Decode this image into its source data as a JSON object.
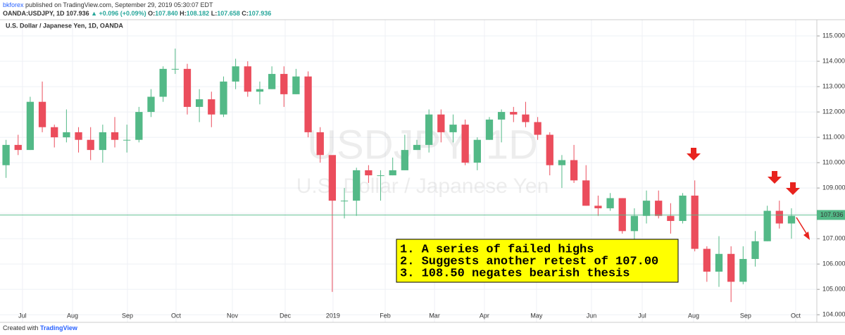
{
  "header": {
    "author": "bkforex",
    "published": "published on TradingView.com, September 29, 2019 05:30:07 EDT",
    "symbol": "OANDA:USDJPY, 1D",
    "last": "107.936",
    "change": "▲ +0.096 (+0.09%)",
    "o_label": "O:",
    "o": "107.840",
    "h_label": "H:",
    "h": "108.182",
    "l_label": "L:",
    "l": "107.658",
    "c_label": "C:",
    "c": "107.936"
  },
  "chart_data": {
    "type": "candlestick",
    "title": "U.S. Dollar / Japanese Yen, 1D, OANDA",
    "watermark": "USDJPY, 1D",
    "watermark_subtitle": "U.S. Dollar / Japanese Yen",
    "up_color": "#53b987",
    "down_color": "#eb4d5c",
    "grid": true,
    "open": [
      109.9,
      110.7,
      110.5,
      112.4,
      111.4,
      111.0,
      111.2,
      110.9,
      110.5,
      111.2,
      110.9,
      110.9,
      112.0,
      112.6,
      113.7,
      113.7,
      112.2,
      112.5,
      111.9,
      113.2,
      113.8,
      112.8,
      112.9,
      113.5,
      112.7,
      113.4,
      111.2,
      110.3,
      108.5,
      108.5,
      109.7,
      109.5,
      109.5,
      109.7,
      110.5,
      110.7,
      111.9,
      111.2,
      111.5,
      110.0,
      110.9,
      111.7,
      112.0,
      111.9,
      111.6,
      111.1,
      109.9,
      110.1,
      109.3,
      108.3,
      108.2,
      108.6,
      107.3,
      107.9,
      108.5,
      107.9,
      107.7,
      108.7,
      106.6,
      105.7,
      106.4,
      105.3,
      106.2,
      106.9,
      108.1,
      107.6
    ],
    "high": [
      110.9,
      111.1,
      112.6,
      113.2,
      111.5,
      112.1,
      111.4,
      111.4,
      111.5,
      111.8,
      111.5,
      112.2,
      112.9,
      113.8,
      114.5,
      113.9,
      112.9,
      112.8,
      113.4,
      114.1,
      114.0,
      113.2,
      113.8,
      113.8,
      113.7,
      113.6,
      111.4,
      110.2,
      109.0,
      109.8,
      109.9,
      109.7,
      110.2,
      111.1,
      110.9,
      112.1,
      112.1,
      111.9,
      111.7,
      111.0,
      111.8,
      112.1,
      112.2,
      112.4,
      111.8,
      111.2,
      110.3,
      110.7,
      109.9,
      108.7,
      108.8,
      108.6,
      108.2,
      108.9,
      108.9,
      108.4,
      108.8,
      109.3,
      106.7,
      107.1,
      106.7,
      106.7,
      107.3,
      108.3,
      108.5,
      108.2
    ],
    "low": [
      109.4,
      110.3,
      110.5,
      111.2,
      110.6,
      110.8,
      110.4,
      110.1,
      110.0,
      110.6,
      110.4,
      110.8,
      111.8,
      112.4,
      113.5,
      111.9,
      111.6,
      111.4,
      111.8,
      112.9,
      112.6,
      112.3,
      112.9,
      112.2,
      112.7,
      111.0,
      110.0,
      104.9,
      107.8,
      107.9,
      109.2,
      108.5,
      109.5,
      109.7,
      110.5,
      110.4,
      110.8,
      110.8,
      109.9,
      109.7,
      110.9,
      110.8,
      111.6,
      111.4,
      110.9,
      109.5,
      109.0,
      109.2,
      108.3,
      107.9,
      108.1,
      107.2,
      106.8,
      107.6,
      107.8,
      107.2,
      107.6,
      106.5,
      105.3,
      105.1,
      104.5,
      105.2,
      105.9,
      106.9,
      107.4,
      107.0
    ],
    "close": [
      110.7,
      110.5,
      112.4,
      111.4,
      111.0,
      111.2,
      110.9,
      110.5,
      111.2,
      110.9,
      110.9,
      112.0,
      112.6,
      113.7,
      113.7,
      112.2,
      112.5,
      111.9,
      113.2,
      113.8,
      112.8,
      112.9,
      113.5,
      112.7,
      113.4,
      111.2,
      110.3,
      108.5,
      108.5,
      109.7,
      109.5,
      109.5,
      109.7,
      110.5,
      110.7,
      111.9,
      111.2,
      111.5,
      110.0,
      110.9,
      111.7,
      112.0,
      111.9,
      111.6,
      111.1,
      109.9,
      110.1,
      109.3,
      108.3,
      108.2,
      108.6,
      107.3,
      107.9,
      108.5,
      107.9,
      107.7,
      108.7,
      106.6,
      105.7,
      106.4,
      105.3,
      106.2,
      106.9,
      108.1,
      107.6,
      107.9
    ],
    "xlim": [
      -0.5,
      67.1
    ],
    "xticks": [
      {
        "value": 1.36,
        "label": "Jul"
      },
      {
        "value": 5.5,
        "label": "Aug"
      },
      {
        "value": 10.05,
        "label": "Sep"
      },
      {
        "value": 14.07,
        "label": "Oct"
      },
      {
        "value": 18.73,
        "label": "Nov"
      },
      {
        "value": 23.1,
        "label": "Dec"
      },
      {
        "value": 27.06,
        "label": "2019"
      },
      {
        "value": 31.38,
        "label": "Feb"
      },
      {
        "value": 35.46,
        "label": "Mar"
      },
      {
        "value": 39.59,
        "label": "Apr"
      },
      {
        "value": 43.9,
        "label": "May"
      },
      {
        "value": 48.45,
        "label": "Jun"
      },
      {
        "value": 52.65,
        "label": "Jul"
      },
      {
        "value": 56.9,
        "label": "Aug"
      },
      {
        "value": 61.21,
        "label": "Sep"
      },
      {
        "value": 65.35,
        "label": "Oct"
      }
    ],
    "ylim": [
      103.7,
      115.64
    ],
    "yticks": [
      {
        "value": 104,
        "label": "104.000"
      },
      {
        "value": 105,
        "label": "105.000"
      },
      {
        "value": 106,
        "label": "106.000"
      },
      {
        "value": 107,
        "label": "107.000"
      },
      {
        "value": 108,
        "label": "108.000"
      },
      {
        "value": 109,
        "label": "109.000"
      },
      {
        "value": 110,
        "label": "110.000"
      },
      {
        "value": 111,
        "label": "111.000"
      },
      {
        "value": 112,
        "label": "112.000"
      },
      {
        "value": 113,
        "label": "113.000"
      },
      {
        "value": 114,
        "label": "114.000"
      },
      {
        "value": 115,
        "label": "115.000"
      }
    ],
    "price_line": {
      "value": 107.936,
      "label": "107.936"
    },
    "annotations": [
      "1. A series of failed highs",
      "2. Suggests another retest of 107.00",
      "3. 108.50 negates bearish thesis"
    ]
  },
  "footer": {
    "prefix": "Created with",
    "brand": "TradingView"
  }
}
